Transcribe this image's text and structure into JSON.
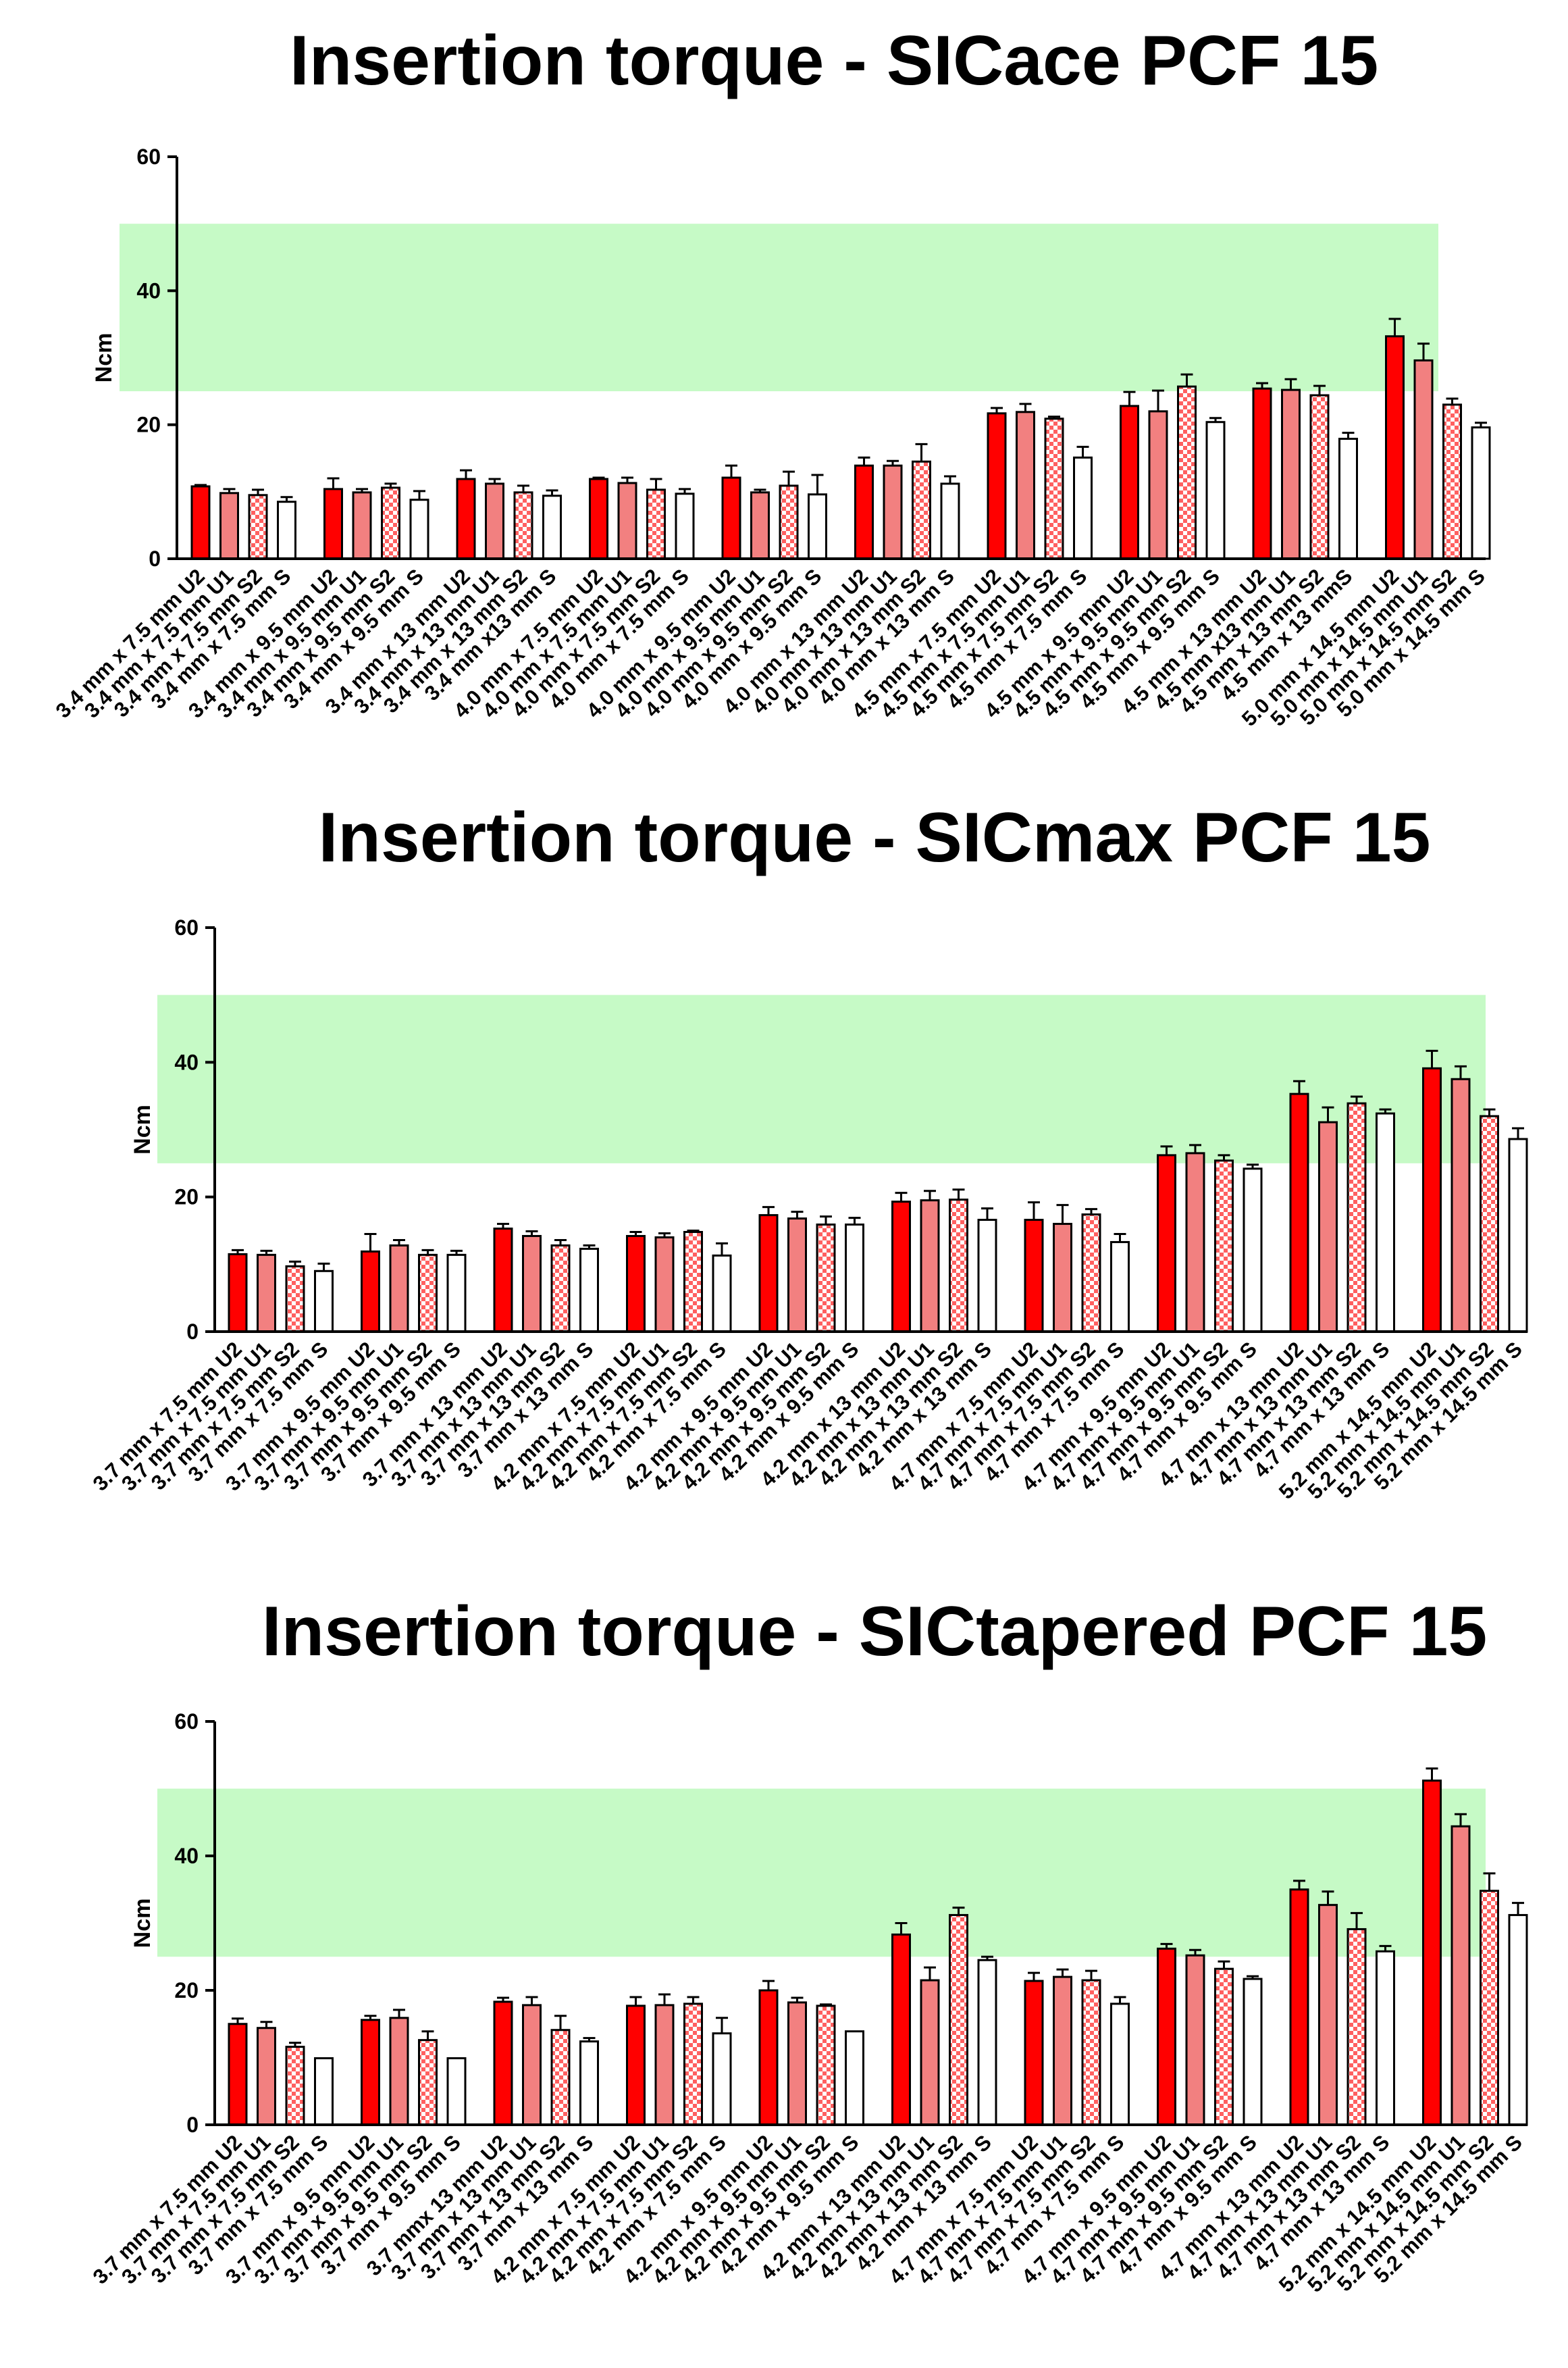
{
  "chart_data": [
    {
      "type": "bar",
      "title": "Insertion torque - SICace PCF 15",
      "xlabel": "",
      "ylabel": "Ncm",
      "ylim": [
        0,
        60
      ],
      "yticks": [
        0,
        20,
        40,
        60
      ],
      "shaded_band": [
        25,
        50
      ],
      "colors": {
        "U2": "#ff0000",
        "U1": "#f28080",
        "S2": "checkered",
        "S": "#ffffff",
        "band": "#c6fac6"
      },
      "series_pattern": [
        "U2",
        "U1",
        "S2",
        "S"
      ],
      "categories": [
        "3.4 mm x 7.5 mm U2",
        "3.4 mm x 7.5 mm U1",
        "3.4 mm x 7.5 mm S2",
        "3.4 mm x 7.5 mm S",
        "3.4 mm x 9.5 mm U2",
        "3.4 mm x 9.5 mm U1",
        "3.4 mm x 9.5 mm S2",
        "3.4 mm x 9.5 mm S",
        "3.4 mm x 13 mm U2",
        "3.4 mm x 13 mm U1",
        "3.4 mm x 13 mm S2",
        "3.4 mm x13 mm S",
        "4.0 mm x 7.5 mm U2",
        "4.0 mm x 7.5 mm U1",
        "4.0 mm x 7.5 mm S2",
        "4.0 mm x 7.5 mm S",
        "4.0 mm x 9.5 mm U2",
        "4.0 mm x 9.5 mm U1",
        "4.0 mm x 9.5 mm S2",
        "4.0 mm x 9.5 mm S",
        "4.0 mm x 13 mm U2",
        "4.0 mm x 13 mm U1",
        "4.0 mm x 13 mm S2",
        "4.0 mm x 13 mm S",
        "4.5 mm x 7.5 mm U2",
        "4.5 mm x 7.5 mm U1",
        "4.5 mm x 7.5 mm S2",
        "4.5 mm x 7.5 mm S",
        "4.5 mm x 9.5 mm U2",
        "4.5 mm x 9.5 mm U1",
        "4.5 mm x 9.5 mm S2",
        "4.5 mm x 9.5 mm S",
        "4.5 mm x 13 mm U2",
        "4.5 mm x13 mm U1",
        "4.5 mm x 13 mm S2",
        "4.5 mm x 13 mmS",
        "5.0 mm x 14.5 mm U2",
        "5.0 mm x 14.5 mm U1",
        "5.0 mm x 14.5 mm S2",
        "5.0 mm x 14.5 mm S"
      ],
      "values": [
        10.8,
        9.8,
        9.5,
        8.5,
        10.4,
        9.9,
        10.6,
        8.8,
        11.9,
        11.2,
        9.9,
        9.4,
        11.9,
        11.3,
        10.3,
        9.7,
        12.1,
        9.9,
        10.9,
        9.6,
        13.9,
        13.9,
        14.5,
        11.2,
        21.7,
        21.9,
        20.9,
        15.1,
        22.8,
        22.0,
        25.7,
        20.4,
        25.4,
        25.2,
        24.4,
        17.9,
        33.2,
        29.6,
        23.0,
        19.6
      ],
      "errors": [
        0.2,
        0.6,
        0.8,
        0.7,
        1.6,
        0.5,
        0.6,
        1.3,
        1.3,
        0.7,
        1.0,
        0.8,
        0.2,
        0.8,
        1.6,
        0.7,
        1.8,
        0.4,
        2.1,
        2.9,
        1.2,
        0.7,
        2.6,
        1.1,
        0.8,
        1.2,
        0.3,
        1.6,
        2.1,
        3.1,
        1.8,
        0.6,
        0.8,
        1.6,
        1.4,
        0.9,
        2.6,
        2.5,
        0.9,
        0.7
      ]
    },
    {
      "type": "bar",
      "title": "Insertion torque - SICmax PCF 15",
      "xlabel": "",
      "ylabel": "Ncm",
      "ylim": [
        0,
        60
      ],
      "yticks": [
        0,
        20,
        40,
        60
      ],
      "shaded_band": [
        25,
        50
      ],
      "colors": {
        "U2": "#ff0000",
        "U1": "#f28080",
        "S2": "checkered",
        "S": "#ffffff",
        "band": "#c6fac6"
      },
      "series_pattern": [
        "U2",
        "U1",
        "S2",
        "S"
      ],
      "categories": [
        "3.7 mm x 7.5 mm U2",
        "3.7 mm x 7.5 mm U1",
        "3.7 mm x 7.5 mm S2",
        "3.7 mm x 7.5 mm S",
        "3.7 mm x 9.5 mm U2",
        "3.7 mm x 9.5 mm U1",
        "3.7 mm x 9.5 mm S2",
        "3.7 mm x 9.5 mm S",
        "3.7 mm x 13 mm U2",
        "3.7 mm x 13 mm U1",
        "3.7 mm x 13 mm S2",
        "3.7 mm x 13 mm S",
        "4.2 mm x 7.5 mm U2",
        "4.2 mm x 7.5 mm U1",
        "4.2 mm x 7.5 mm S2",
        "4.2 mm x 7.5 mm S",
        "4.2 mm x 9.5 mm U2",
        "4.2 mm x 9.5 mm U1",
        "4.2 mm x 9.5 mm S2",
        "4.2 mm x 9.5 mm S",
        "4.2 mm x 13 mm U2",
        "4.2 mm x 13 mm U1",
        "4.2 mm x 13 mm S2",
        "4.2 mm x 13 mm S",
        "4.7 mm x 7.5 mm U2",
        "4.7 mm x 7.5 mm U1",
        "4.7 mm x 7.5 mm S2",
        "4.7 mm x 7.5 mm S",
        "4.7 mm x 9.5 mm U2",
        "4.7 mm x 9.5 mm U1",
        "4.7 mm x 9.5 mm S2",
        "4.7 mm x 9.5 mm S",
        "4.7 mm x 13 mm U2",
        "4.7 mm x 13 mm U1",
        "4.7 mm x 13 mm S2",
        "4.7 mm x 13 mm S",
        "5.2 mm x 14.5 mm U2",
        "5.2 mm x 14.5 mm U1",
        "5.2 mm x 14.5 mm S2",
        "5.2 mm x 14.5 mm S"
      ],
      "values": [
        11.5,
        11.4,
        9.7,
        9.0,
        11.9,
        12.8,
        11.4,
        11.4,
        15.3,
        14.2,
        12.8,
        12.3,
        14.2,
        14.0,
        14.8,
        11.3,
        17.3,
        16.8,
        15.9,
        15.9,
        19.3,
        19.5,
        19.6,
        16.6,
        16.6,
        16.0,
        17.4,
        13.3,
        26.2,
        26.5,
        25.4,
        24.2,
        35.3,
        31.1,
        33.9,
        32.4,
        39.1,
        37.5,
        32.0,
        28.6
      ],
      "errors": [
        0.6,
        0.6,
        0.7,
        1.1,
        2.6,
        0.8,
        0.7,
        0.6,
        0.7,
        0.7,
        0.8,
        0.5,
        0.6,
        0.6,
        0.2,
        1.8,
        1.2,
        1.0,
        1.2,
        1.0,
        1.3,
        1.4,
        1.5,
        1.7,
        2.6,
        2.8,
        0.8,
        1.2,
        1.3,
        1.2,
        0.8,
        0.6,
        1.9,
        2.2,
        1.0,
        0.6,
        2.6,
        1.9,
        1.0,
        1.6
      ]
    },
    {
      "type": "bar",
      "title": "Insertion torque - SICtapered PCF 15",
      "xlabel": "",
      "ylabel": "Ncm",
      "ylim": [
        0,
        60
      ],
      "yticks": [
        0,
        20,
        40,
        60
      ],
      "shaded_band": [
        25,
        50
      ],
      "colors": {
        "U2": "#ff0000",
        "U1": "#f28080",
        "S2": "checkered",
        "S": "#ffffff",
        "band": "#c6fac6"
      },
      "series_pattern": [
        "U2",
        "U1",
        "S2",
        "S"
      ],
      "categories": [
        "3.7 mm x 7.5 mm U2",
        "3.7 mm x 7.5 mm U1",
        "3.7 mm x 7.5 mm S2",
        "3.7 mm x 7.5 mm S",
        "3.7 mm x 9.5 mm U2",
        "3.7 mm x 9.5 mm U1",
        "3.7 mm x 9.5 mm S2",
        "3.7 mm x 9.5 mm S",
        "3.7 mmx 13 mm U2",
        "3.7 mm x 13 mm U1",
        "3.7 mm x 13 mm S2",
        "3.7 mm x 13 mm S",
        "4.2 mm x 7.5 mm U2",
        "4.2 mm x 7.5 mm U1",
        "4.2 mm x 7.5 mm S2",
        "4.2 mm x 7.5 mm S",
        "4.2 mm x 9.5 mm U2",
        "4.2 mm x 9.5 mm U1",
        "4.2 mm x 9.5 mm S2",
        "4.2 mm x 9.5 mm S",
        "4.2 mm x 13 mm U2",
        "4.2 mm x 13 mm U1",
        "4.2 mm x 13 mm S2",
        "4.2 mm x 13 mm S",
        "4.7 mm x 7.5 mm U2",
        "4.7 mm x 7.5 mm U1",
        "4.7 mm x 7.5 mm S2",
        "4.7 mm x 7.5 mm S",
        "4.7 mm x 9.5 mm U2",
        "4.7 mm x 9.5 mm U1",
        "4.7 mm x 9.5 mm S2",
        "4.7 mm x 9.5 mm S",
        "4.7 mm x 13 mm U2",
        "4.7 mm x 13 mm U1",
        "4.7 mm x 13 mm S2",
        "4.7 mm x 13 mm S",
        "5.2 mm x 14.5 mm U2",
        "5.2 mm x 14.5 mm U1",
        "5.2 mm x 14.5 mm S2",
        "5.2 mm x 14.5 mm S"
      ],
      "values": [
        15.0,
        14.4,
        11.6,
        9.9,
        15.6,
        15.9,
        12.6,
        9.9,
        18.3,
        17.8,
        14.1,
        12.4,
        17.7,
        17.8,
        18.0,
        13.6,
        20.0,
        18.2,
        17.7,
        13.9,
        28.3,
        21.5,
        31.2,
        24.5,
        21.4,
        22.0,
        21.5,
        18.0,
        26.2,
        25.2,
        23.2,
        21.7,
        35.0,
        32.7,
        29.1,
        25.8,
        51.2,
        44.4,
        34.8,
        31.2
      ],
      "errors": [
        0.8,
        0.9,
        0.6,
        0.0,
        0.6,
        1.2,
        1.3,
        0.0,
        0.6,
        1.2,
        2.1,
        0.5,
        1.3,
        1.6,
        1.0,
        2.3,
        1.4,
        0.7,
        0.2,
        0.0,
        1.7,
        1.9,
        1.1,
        0.5,
        1.2,
        1.1,
        1.4,
        1.0,
        0.7,
        0.8,
        1.1,
        0.4,
        1.3,
        2.0,
        2.4,
        0.8,
        1.8,
        1.8,
        2.6,
        1.8
      ]
    }
  ]
}
